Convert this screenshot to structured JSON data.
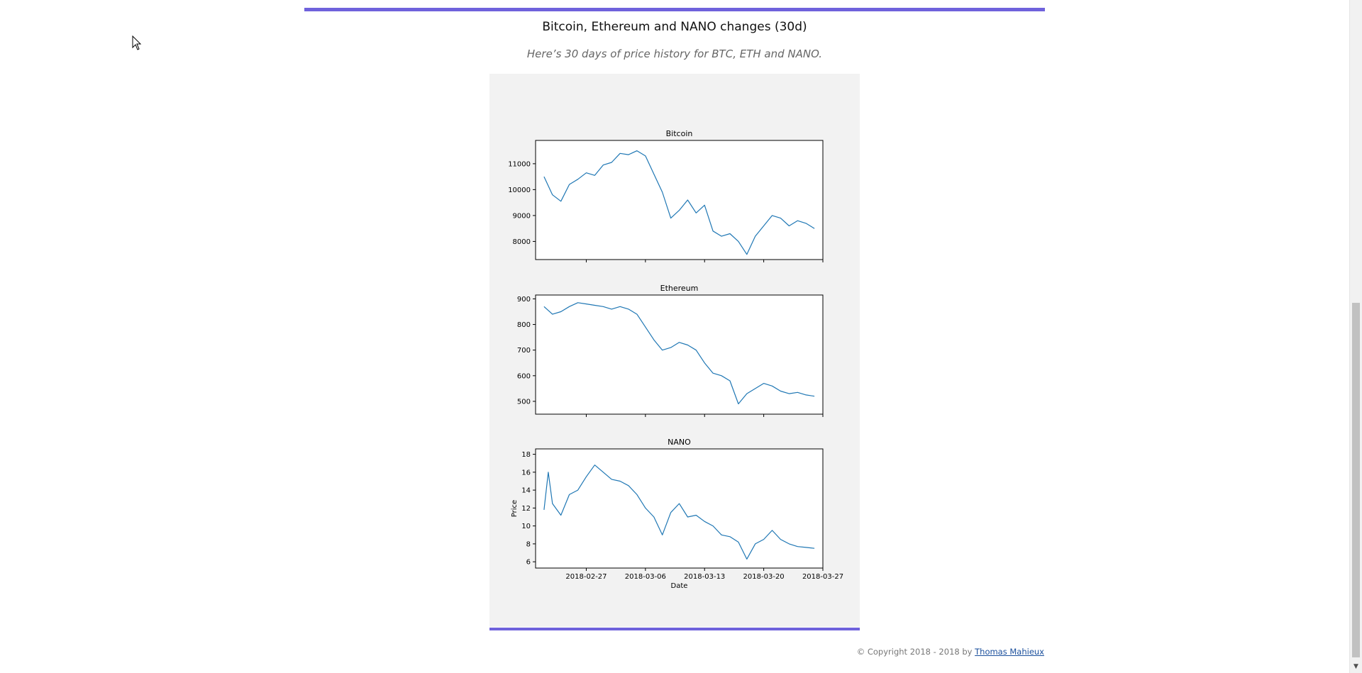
{
  "section": {
    "title": "Bitcoin, Ethereum and NANO changes (30d)",
    "subtitle": "Here’s 30 days of price history for BTC, ETH and NANO."
  },
  "footer": {
    "copyright": "© Copyright 2018 - 2018 by",
    "author": "Thomas Mahieux"
  },
  "colors": {
    "accent": "#6f62dc",
    "line": "#1f77b4",
    "figure_bg": "#f2f2f2"
  },
  "chart_data": [
    {
      "type": "line",
      "title": "Bitcoin",
      "xlabel": "",
      "ylabel": "",
      "xlim": [
        "2018-02-21",
        "2018-03-27"
      ],
      "ylim": [
        7300,
        11900
      ],
      "yticks": [
        8000,
        9000,
        10000,
        11000
      ],
      "xticks": [
        "2018-02-27",
        "2018-03-06",
        "2018-03-13",
        "2018-03-20",
        "2018-03-27"
      ],
      "show_xticklabels": false,
      "series": [
        {
          "x": [
            "2018-02-22",
            "2018-02-23",
            "2018-02-24",
            "2018-02-25",
            "2018-02-26",
            "2018-02-27",
            "2018-02-28",
            "2018-03-01",
            "2018-03-02",
            "2018-03-03",
            "2018-03-04",
            "2018-03-05",
            "2018-03-06",
            "2018-03-07",
            "2018-03-08",
            "2018-03-09",
            "2018-03-10",
            "2018-03-11",
            "2018-03-12",
            "2018-03-13",
            "2018-03-14",
            "2018-03-15",
            "2018-03-16",
            "2018-03-17",
            "2018-03-18",
            "2018-03-19",
            "2018-03-20",
            "2018-03-21",
            "2018-03-22",
            "2018-03-23",
            "2018-03-24",
            "2018-03-25",
            "2018-03-26"
          ],
          "y": [
            10500,
            9800,
            9550,
            10200,
            10400,
            10650,
            10550,
            10950,
            11050,
            11400,
            11350,
            11500,
            11300,
            10600,
            9900,
            8900,
            9200,
            9600,
            9100,
            9400,
            8400,
            8200,
            8300,
            8000,
            7500,
            8200,
            8600,
            9000,
            8900,
            8600,
            8800,
            8700,
            8500
          ]
        }
      ]
    },
    {
      "type": "line",
      "title": "Ethereum",
      "xlabel": "",
      "ylabel": "",
      "xlim": [
        "2018-02-21",
        "2018-03-27"
      ],
      "ylim": [
        450,
        915
      ],
      "yticks": [
        500,
        600,
        700,
        800,
        900
      ],
      "xticks": [
        "2018-02-27",
        "2018-03-06",
        "2018-03-13",
        "2018-03-20",
        "2018-03-27"
      ],
      "show_xticklabels": false,
      "series": [
        {
          "x": [
            "2018-02-22",
            "2018-02-23",
            "2018-02-24",
            "2018-02-25",
            "2018-02-26",
            "2018-02-27",
            "2018-02-28",
            "2018-03-01",
            "2018-03-02",
            "2018-03-03",
            "2018-03-04",
            "2018-03-05",
            "2018-03-06",
            "2018-03-07",
            "2018-03-08",
            "2018-03-09",
            "2018-03-10",
            "2018-03-11",
            "2018-03-12",
            "2018-03-13",
            "2018-03-14",
            "2018-03-15",
            "2018-03-16",
            "2018-03-17",
            "2018-03-18",
            "2018-03-19",
            "2018-03-20",
            "2018-03-21",
            "2018-03-22",
            "2018-03-23",
            "2018-03-24",
            "2018-03-25",
            "2018-03-26"
          ],
          "y": [
            870,
            840,
            850,
            870,
            885,
            880,
            875,
            870,
            860,
            870,
            860,
            840,
            790,
            740,
            700,
            710,
            730,
            720,
            700,
            650,
            610,
            600,
            580,
            490,
            530,
            550,
            570,
            560,
            540,
            530,
            535,
            525,
            520
          ]
        }
      ]
    },
    {
      "type": "line",
      "title": "NANO",
      "xlabel": "Date",
      "ylabel": "Price",
      "xlim": [
        "2018-02-21",
        "2018-03-27"
      ],
      "ylim": [
        5.3,
        18.6
      ],
      "yticks": [
        6,
        8,
        10,
        12,
        14,
        16,
        18
      ],
      "xticks": [
        "2018-02-27",
        "2018-03-06",
        "2018-03-13",
        "2018-03-20",
        "2018-03-27"
      ],
      "show_xticklabels": true,
      "series": [
        {
          "x": [
            "2018-02-22",
            "2018-02-22T12",
            "2018-02-23",
            "2018-02-24",
            "2018-02-25",
            "2018-02-26",
            "2018-02-27",
            "2018-02-28",
            "2018-03-01",
            "2018-03-02",
            "2018-03-03",
            "2018-03-04",
            "2018-03-05",
            "2018-03-06",
            "2018-03-07",
            "2018-03-08",
            "2018-03-09",
            "2018-03-10",
            "2018-03-11",
            "2018-03-12",
            "2018-03-13",
            "2018-03-14",
            "2018-03-15",
            "2018-03-16",
            "2018-03-17",
            "2018-03-18",
            "2018-03-19",
            "2018-03-20",
            "2018-03-21",
            "2018-03-22",
            "2018-03-23",
            "2018-03-24",
            "2018-03-25",
            "2018-03-26"
          ],
          "y": [
            11.8,
            16.0,
            12.5,
            11.2,
            13.5,
            14.0,
            15.5,
            16.8,
            16.0,
            15.2,
            15.0,
            14.5,
            13.5,
            12.0,
            11.0,
            9.0,
            11.5,
            12.5,
            11.0,
            11.2,
            10.5,
            10.0,
            9.0,
            8.8,
            8.2,
            6.3,
            8.0,
            8.5,
            9.5,
            8.5,
            8.0,
            7.7,
            7.6,
            7.5
          ]
        }
      ]
    }
  ]
}
